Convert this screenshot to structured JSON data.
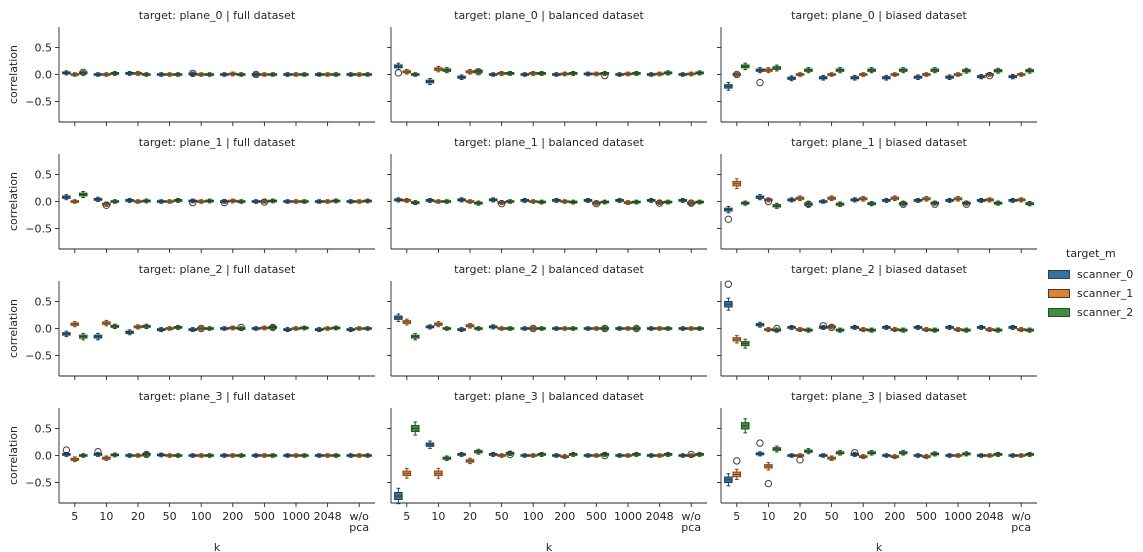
{
  "figure": {
    "ylabel": "correlation",
    "xlabel": "k"
  },
  "legend": {
    "title": "target_m",
    "items": [
      {
        "label": "scanner_0",
        "color": "#3274a1"
      },
      {
        "label": "scanner_1",
        "color": "#e1812c"
      },
      {
        "label": "scanner_2",
        "color": "#3a923a"
      }
    ]
  },
  "chart_data": {
    "type": "box",
    "categories": [
      "5",
      "10",
      "20",
      "50",
      "100",
      "200",
      "500",
      "1000",
      "2048",
      "w/o\npca"
    ],
    "series_names": [
      "scanner_0",
      "scanner_1",
      "scanner_2"
    ],
    "colors": [
      "#3274a1",
      "#e1812c",
      "#3a923a"
    ],
    "ylim": [
      -0.88,
      0.88
    ],
    "yticks": [
      -0.5,
      0.0,
      0.5
    ],
    "ytick_labels": [
      "−0.5",
      "0.0",
      "0.5"
    ],
    "row_targets": [
      "plane_0",
      "plane_1",
      "plane_2",
      "plane_3"
    ],
    "col_datasets": [
      "full dataset",
      "balanced dataset",
      "biased dataset"
    ],
    "panels": [
      {
        "title": "target: plane_0 | full dataset",
        "medians": [
          [
            0.03,
            0.0,
            0.03
          ],
          [
            0.0,
            0.0,
            0.02
          ],
          [
            0.02,
            0.02,
            0.0
          ],
          [
            0.0,
            0.0,
            0.0
          ],
          [
            0.01,
            0.0,
            0.0
          ],
          [
            0.0,
            0.01,
            0.0
          ],
          [
            0.0,
            0.0,
            0.0
          ],
          [
            0.0,
            0.0,
            0.0
          ],
          [
            0.0,
            0.0,
            0.0
          ],
          [
            0.0,
            0.0,
            0.0
          ]
        ],
        "outliers": [
          [
            0,
            2,
            0.04
          ],
          [
            4,
            0,
            0.02
          ],
          [
            6,
            0,
            0.0
          ]
        ]
      },
      {
        "title": "target: plane_0 | balanced dataset",
        "medians": [
          [
            0.15,
            0.05,
            0.0
          ],
          [
            -0.13,
            0.1,
            0.08
          ],
          [
            -0.05,
            0.05,
            0.06
          ],
          [
            0.0,
            0.02,
            0.02
          ],
          [
            0.0,
            0.02,
            0.02
          ],
          [
            0.0,
            0.01,
            0.02
          ],
          [
            0.01,
            0.01,
            0.02
          ],
          [
            0.0,
            0.01,
            0.02
          ],
          [
            0.0,
            0.01,
            0.03
          ],
          [
            0.0,
            0.01,
            0.03
          ]
        ],
        "outliers": [
          [
            0,
            0,
            0.03
          ],
          [
            2,
            2,
            0.05
          ],
          [
            6,
            2,
            -0.02
          ]
        ]
      },
      {
        "title": "target: plane_0 | biased dataset",
        "medians": [
          [
            -0.22,
            0.0,
            0.15
          ],
          [
            0.08,
            0.08,
            0.12
          ],
          [
            -0.07,
            0.0,
            0.08
          ],
          [
            -0.06,
            0.0,
            0.08
          ],
          [
            -0.06,
            0.0,
            0.08
          ],
          [
            -0.06,
            0.0,
            0.08
          ],
          [
            -0.05,
            0.0,
            0.08
          ],
          [
            -0.05,
            0.0,
            0.07
          ],
          [
            -0.04,
            0.0,
            0.07
          ],
          [
            -0.04,
            0.0,
            0.07
          ]
        ],
        "outliers": [
          [
            0,
            1,
            0.0
          ],
          [
            1,
            0,
            -0.15
          ],
          [
            8,
            1,
            -0.02
          ]
        ]
      },
      {
        "title": "target: plane_1 | full dataset",
        "medians": [
          [
            0.08,
            0.0,
            0.13
          ],
          [
            0.04,
            -0.05,
            0.0
          ],
          [
            0.02,
            0.0,
            0.01
          ],
          [
            0.0,
            0.0,
            0.02
          ],
          [
            0.01,
            0.0,
            0.01
          ],
          [
            0.0,
            0.01,
            0.0
          ],
          [
            0.0,
            0.0,
            0.01
          ],
          [
            0.0,
            0.0,
            0.0
          ],
          [
            0.0,
            0.0,
            0.01
          ],
          [
            0.0,
            0.0,
            0.01
          ]
        ],
        "outliers": [
          [
            1,
            1,
            -0.07
          ],
          [
            4,
            0,
            -0.02
          ],
          [
            5,
            0,
            -0.02
          ],
          [
            6,
            1,
            -0.01
          ]
        ]
      },
      {
        "title": "target: plane_1 | balanced dataset",
        "medians": [
          [
            0.03,
            0.02,
            -0.02
          ],
          [
            0.02,
            0.0,
            0.0
          ],
          [
            0.03,
            0.0,
            -0.03
          ],
          [
            0.03,
            -0.02,
            0.0
          ],
          [
            0.02,
            0.0,
            -0.01
          ],
          [
            0.02,
            0.0,
            -0.01
          ],
          [
            0.02,
            -0.03,
            -0.01
          ],
          [
            0.02,
            -0.02,
            -0.01
          ],
          [
            0.02,
            -0.02,
            -0.01
          ],
          [
            0.02,
            -0.03,
            -0.01
          ]
        ],
        "outliers": [
          [
            3,
            1,
            -0.04
          ],
          [
            6,
            1,
            -0.04
          ],
          [
            8,
            1,
            -0.03
          ],
          [
            9,
            1,
            -0.03
          ]
        ]
      },
      {
        "title": "target: plane_1 | biased dataset",
        "medians": [
          [
            -0.15,
            0.33,
            -0.03
          ],
          [
            0.08,
            0.03,
            -0.08
          ],
          [
            0.03,
            0.06,
            -0.05
          ],
          [
            0.0,
            0.06,
            -0.05
          ],
          [
            0.03,
            0.05,
            -0.04
          ],
          [
            0.02,
            0.06,
            -0.04
          ],
          [
            0.02,
            0.05,
            -0.03
          ],
          [
            0.02,
            0.05,
            -0.03
          ],
          [
            0.02,
            0.03,
            -0.03
          ],
          [
            0.02,
            0.03,
            -0.04
          ]
        ],
        "outliers": [
          [
            0,
            0,
            -0.33
          ],
          [
            1,
            1,
            0.0
          ],
          [
            2,
            2,
            -0.05
          ],
          [
            5,
            2,
            -0.05
          ],
          [
            6,
            2,
            -0.05
          ],
          [
            7,
            2,
            -0.05
          ]
        ]
      },
      {
        "title": "target: plane_2 | full dataset",
        "medians": [
          [
            -0.1,
            0.08,
            -0.15
          ],
          [
            -0.15,
            0.1,
            0.04
          ],
          [
            -0.07,
            0.03,
            0.04
          ],
          [
            -0.02,
            0.0,
            0.02
          ],
          [
            -0.02,
            0.0,
            0.0
          ],
          [
            0.0,
            0.01,
            0.0
          ],
          [
            0.0,
            0.01,
            0.02
          ],
          [
            -0.02,
            0.0,
            0.01
          ],
          [
            -0.02,
            0.0,
            0.01
          ],
          [
            -0.02,
            0.0,
            0.0
          ]
        ],
        "outliers": [
          [
            4,
            1,
            0.0
          ],
          [
            5,
            2,
            0.02
          ],
          [
            6,
            2,
            0.02
          ]
        ]
      },
      {
        "title": "target: plane_2 | balanced dataset",
        "medians": [
          [
            0.2,
            0.12,
            -0.15
          ],
          [
            0.03,
            0.08,
            0.0
          ],
          [
            -0.02,
            0.05,
            0.0
          ],
          [
            0.03,
            0.0,
            0.0
          ],
          [
            0.0,
            0.0,
            0.0
          ],
          [
            0.0,
            0.0,
            0.0
          ],
          [
            0.0,
            0.0,
            0.0
          ],
          [
            0.0,
            0.0,
            0.0
          ],
          [
            0.0,
            0.0,
            0.0
          ],
          [
            0.0,
            0.0,
            0.0
          ]
        ],
        "outliers": [
          [
            4,
            1,
            0.0
          ],
          [
            6,
            2,
            0.0
          ],
          [
            7,
            2,
            0.0
          ]
        ]
      },
      {
        "title": "target: plane_2 | biased dataset",
        "medians": [
          [
            0.45,
            -0.2,
            -0.28
          ],
          [
            0.07,
            -0.02,
            -0.03
          ],
          [
            0.02,
            -0.02,
            -0.03
          ],
          [
            0.02,
            0.03,
            -0.03
          ],
          [
            0.02,
            -0.02,
            -0.03
          ],
          [
            0.02,
            -0.02,
            -0.03
          ],
          [
            0.02,
            -0.02,
            -0.03
          ],
          [
            0.02,
            -0.02,
            -0.03
          ],
          [
            0.02,
            -0.02,
            -0.03
          ],
          [
            0.02,
            -0.02,
            -0.03
          ]
        ],
        "outliers": [
          [
            0,
            0,
            0.82
          ],
          [
            1,
            2,
            0.0
          ],
          [
            3,
            0,
            0.05
          ],
          [
            3,
            1,
            0.02
          ]
        ]
      },
      {
        "title": "target: plane_3 | full dataset",
        "medians": [
          [
            0.02,
            -0.07,
            0.0
          ],
          [
            0.02,
            -0.05,
            0.01
          ],
          [
            0.0,
            0.0,
            0.02
          ],
          [
            0.01,
            0.0,
            0.0
          ],
          [
            0.0,
            0.0,
            0.0
          ],
          [
            0.0,
            0.0,
            0.0
          ],
          [
            0.0,
            0.0,
            0.0
          ],
          [
            0.0,
            0.0,
            0.0
          ],
          [
            0.0,
            0.0,
            0.0
          ],
          [
            0.0,
            0.0,
            0.0
          ]
        ],
        "outliers": [
          [
            0,
            0,
            0.1
          ],
          [
            1,
            0,
            0.07
          ],
          [
            2,
            2,
            0.02
          ]
        ]
      },
      {
        "title": "target: plane_3 | balanced dataset",
        "medians": [
          [
            -0.75,
            -0.33,
            0.5
          ],
          [
            0.2,
            -0.33,
            -0.05
          ],
          [
            0.02,
            -0.1,
            0.07
          ],
          [
            0.02,
            0.0,
            0.04
          ],
          [
            0.0,
            0.0,
            0.02
          ],
          [
            0.0,
            -0.02,
            0.02
          ],
          [
            0.0,
            0.0,
            0.02
          ],
          [
            0.0,
            0.0,
            0.02
          ],
          [
            0.0,
            0.0,
            0.02
          ],
          [
            0.0,
            0.0,
            0.02
          ]
        ],
        "outliers": [
          [
            3,
            2,
            0.02
          ],
          [
            6,
            2,
            0.0
          ],
          [
            9,
            1,
            0.02
          ]
        ]
      },
      {
        "title": "target: plane_3 | biased dataset",
        "medians": [
          [
            -0.45,
            -0.35,
            0.55
          ],
          [
            0.03,
            -0.2,
            0.12
          ],
          [
            0.0,
            0.0,
            0.08
          ],
          [
            0.0,
            -0.05,
            0.05
          ],
          [
            0.02,
            -0.02,
            0.05
          ],
          [
            0.0,
            -0.02,
            0.05
          ],
          [
            0.0,
            -0.02,
            0.03
          ],
          [
            0.0,
            0.0,
            0.03
          ],
          [
            0.0,
            0.0,
            0.02
          ],
          [
            0.0,
            0.0,
            0.02
          ]
        ],
        "outliers": [
          [
            0,
            1,
            -0.1
          ],
          [
            1,
            1,
            -0.52
          ],
          [
            1,
            0,
            0.23
          ],
          [
            2,
            1,
            -0.08
          ],
          [
            4,
            0,
            0.05
          ]
        ]
      }
    ]
  }
}
